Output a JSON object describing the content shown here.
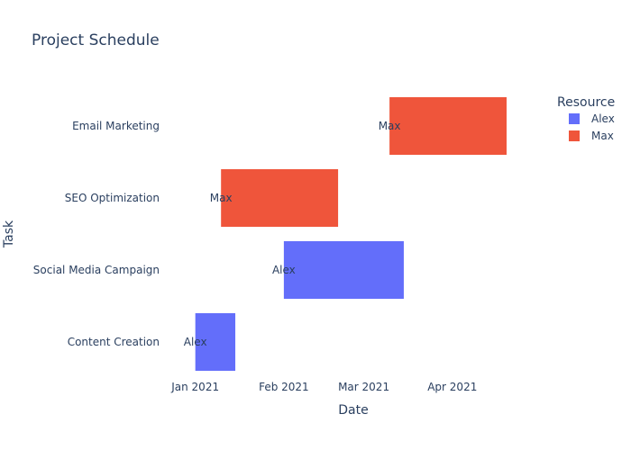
{
  "chart_data": {
    "type": "bar",
    "orientation": "horizontal-timeline",
    "title": "Project Schedule",
    "xlabel": "Date",
    "ylabel": "Task",
    "x_ticks": [
      "Jan 2021",
      "Feb 2021",
      "Mar 2021",
      "Apr 2021"
    ],
    "xlim": [
      "2021-01-01",
      "2021-05-01"
    ],
    "categories": [
      "Content Creation",
      "Social Media Campaign",
      "SEO Optimization",
      "Email Marketing"
    ],
    "tasks": [
      {
        "task": "Content Creation",
        "start": "2021-01-01",
        "end": "2021-01-15",
        "resource": "Alex"
      },
      {
        "task": "Social Media Campaign",
        "start": "2021-02-01",
        "end": "2021-03-15",
        "resource": "Alex"
      },
      {
        "task": "SEO Optimization",
        "start": "2021-01-10",
        "end": "2021-02-20",
        "resource": "Max"
      },
      {
        "task": "Email Marketing",
        "start": "2021-03-10",
        "end": "2021-04-20",
        "resource": "Max"
      }
    ],
    "legend": {
      "title": "Resource",
      "placement": "top-right",
      "items": [
        {
          "name": "Alex",
          "color": "#636efa"
        },
        {
          "name": "Max",
          "color": "#ef553b"
        }
      ]
    },
    "grid": false
  }
}
